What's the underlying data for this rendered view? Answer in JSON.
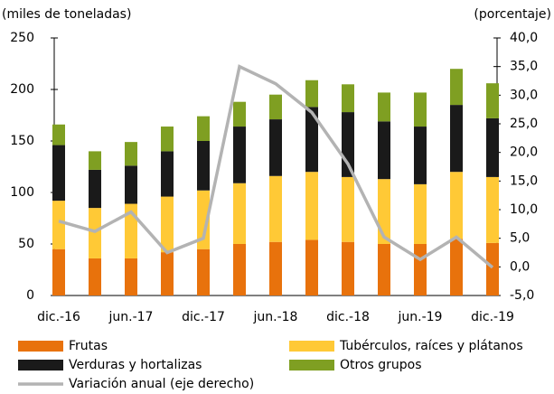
{
  "chart_data": {
    "type": "bar",
    "stacked": true,
    "y_label": "(miles de toneladas)",
    "y2_label": "(porcentaje)",
    "categories": [
      "dic.-16",
      null,
      "jun.-17",
      null,
      "dic.-17",
      null,
      "jun.-18",
      null,
      "dic.-18",
      null,
      "jun.-19",
      null,
      "dic.-19"
    ],
    "series": [
      {
        "name": "Frutas",
        "color": "#e8720c",
        "values": [
          45,
          36,
          36,
          42,
          45,
          50,
          52,
          54,
          52,
          50,
          50,
          55,
          51
        ]
      },
      {
        "name": "Tubérculos, raíces y plátanos",
        "color": "#ffc936",
        "values": [
          47,
          49,
          53,
          54,
          57,
          59,
          64,
          66,
          63,
          63,
          58,
          65,
          64
        ]
      },
      {
        "name": "Verduras y hortalizas",
        "color": "#1a1a1a",
        "values": [
          54,
          37,
          37,
          44,
          48,
          55,
          55,
          63,
          63,
          56,
          56,
          65,
          57
        ]
      },
      {
        "name": "Otros grupos",
        "color": "#7f9f22",
        "values": [
          20,
          18,
          23,
          24,
          24,
          24,
          24,
          26,
          27,
          28,
          33,
          35,
          34
        ]
      },
      {
        "name": "Variación anual (eje derecho)",
        "color": "#b3b3b3",
        "type": "line",
        "axis": "y2",
        "values": [
          8.0,
          6.2,
          9.6,
          2.5,
          5.0,
          35.0,
          32.0,
          27.0,
          18.0,
          5.2,
          1.3,
          5.2,
          -0.1
        ]
      }
    ],
    "ylim": [
      0,
      250
    ],
    "yticks": [
      0,
      50,
      100,
      150,
      200,
      250
    ],
    "y2lim": [
      -5,
      40
    ],
    "y2ticks": [
      {
        "value": -5,
        "label": "-5,0"
      },
      {
        "value": 0,
        "label": "0,0"
      },
      {
        "value": 5,
        "label": "5,0"
      },
      {
        "value": 10,
        "label": "10,0"
      },
      {
        "value": 15,
        "label": "15,0"
      },
      {
        "value": 20,
        "label": "20,0"
      },
      {
        "value": 25,
        "label": "25,0"
      },
      {
        "value": 30,
        "label": "30,0"
      },
      {
        "value": 35,
        "label": "35,0"
      },
      {
        "value": 40,
        "label": "40,0"
      }
    ],
    "legend": "bottom"
  }
}
